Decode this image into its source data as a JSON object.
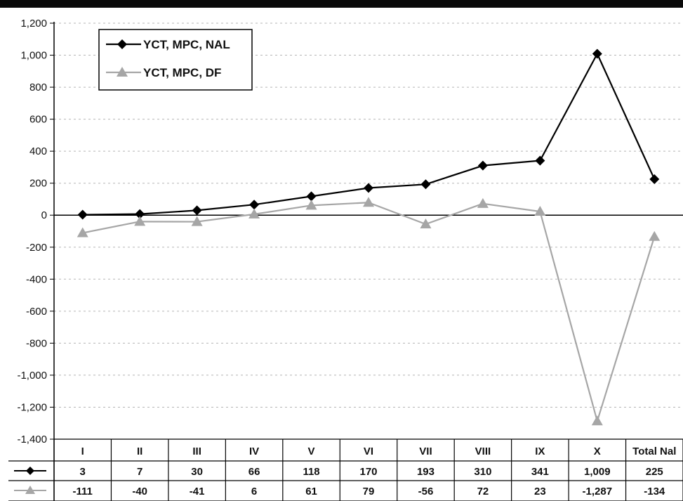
{
  "chart_data": {
    "type": "line",
    "title": "",
    "xlabel": "",
    "ylabel": "",
    "categories": [
      "I",
      "II",
      "III",
      "IV",
      "V",
      "VI",
      "VII",
      "VIII",
      "IX",
      "X",
      "Total Nal"
    ],
    "ylim": [
      -1400,
      1200
    ],
    "yticks": [
      1200,
      1000,
      800,
      600,
      400,
      200,
      0,
      -200,
      -400,
      -600,
      -800,
      -1000,
      -1200,
      -1400
    ],
    "ytick_labels": [
      "1,200",
      "1,000",
      "800",
      "600",
      "400",
      "200",
      "0",
      "-200",
      "-400",
      "-600",
      "-800",
      "-1,000",
      "-1,200",
      "-1,400"
    ],
    "grid": true,
    "legend_position": "top-left",
    "series": [
      {
        "name": "YCT, MPC, NAL",
        "color": "#000000",
        "marker": "diamond",
        "values": [
          3,
          7,
          30,
          66,
          118,
          170,
          193,
          310,
          341,
          1009,
          225
        ],
        "value_labels": [
          "3",
          "7",
          "30",
          "66",
          "118",
          "170",
          "193",
          "310",
          "341",
          "1,009",
          "225"
        ]
      },
      {
        "name": "YCT, MPC, DF",
        "color": "#a6a6a6",
        "marker": "triangle",
        "values": [
          -111,
          -40,
          -41,
          6,
          61,
          79,
          -56,
          72,
          23,
          -1287,
          -134
        ],
        "value_labels": [
          "-111",
          "-40",
          "-41",
          "6",
          "61",
          "79",
          "-56",
          "72",
          "23",
          "-1,287",
          "-134"
        ]
      }
    ],
    "data_table": true
  }
}
